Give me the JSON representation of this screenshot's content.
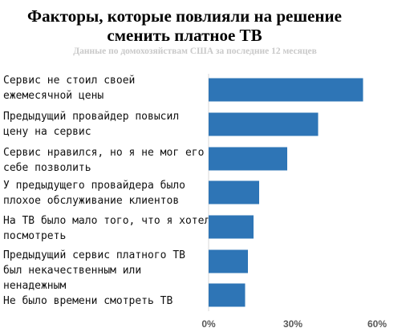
{
  "chart_data": {
    "type": "bar",
    "orientation": "horizontal",
    "title": "Факторы, которые повлияли на  решение\nсменить платное ТВ",
    "subtitle": "Данные по домохозяйствам США за последние 12 месяцев",
    "categories": [
      "Сервис не стоил своей\nежемесячной цены",
      "Предыдущий провайдер повысил\nцену на сервис",
      "Сервис нравился, но я не мог его\nсебе позволить",
      "У предыдущего провайдера было\nплохое обслуживание клиентов",
      "На ТВ было мало того, что я хотел\nпосмотреть",
      "Предыдущий сервис платного ТВ\nбыл некачественным или\nненадежным",
      "Не было времени смотреть ТВ"
    ],
    "values": [
      55,
      39,
      28,
      18,
      16,
      14,
      13
    ],
    "x_ticks": [
      "0%",
      "30%",
      "60%"
    ],
    "xlim": [
      0,
      60
    ],
    "bar_color": "#2e75b6",
    "grid": false
  }
}
